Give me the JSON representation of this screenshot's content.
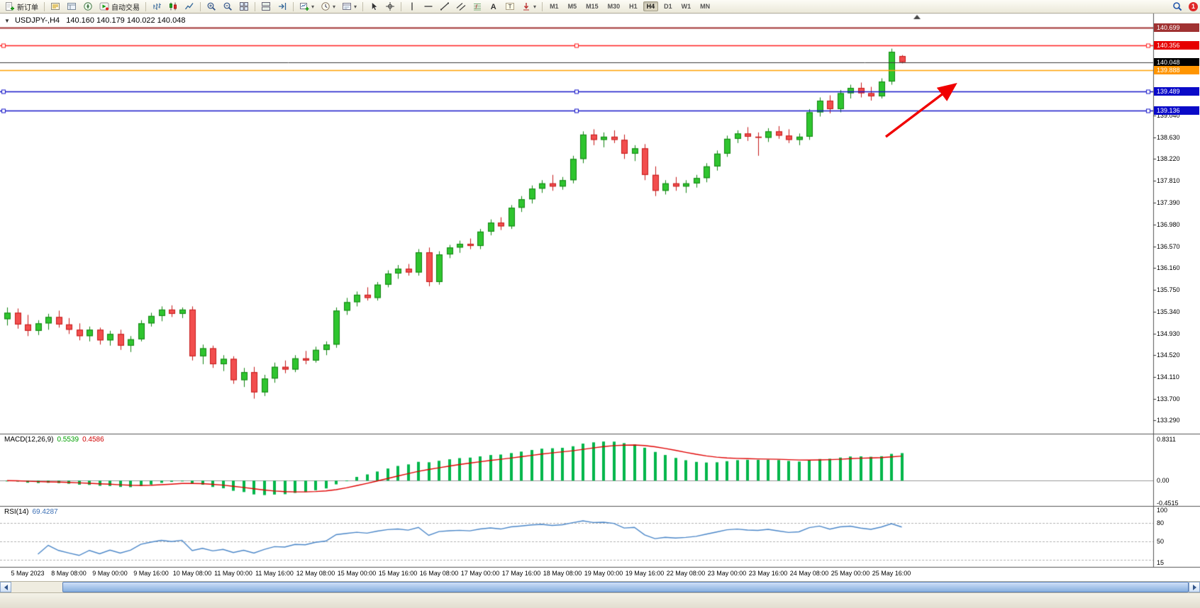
{
  "toolbar": {
    "items": [
      {
        "kind": "button",
        "name": "new-order",
        "icon": "new-order",
        "label": "新订单"
      },
      {
        "kind": "sep"
      },
      {
        "kind": "icon",
        "name": "market-watch"
      },
      {
        "kind": "icon",
        "name": "data-window"
      },
      {
        "kind": "icon",
        "name": "navigator"
      },
      {
        "kind": "button",
        "name": "auto-trading",
        "icon": "auto-trading",
        "label": "自动交易"
      },
      {
        "kind": "sep"
      },
      {
        "kind": "icon",
        "name": "bar-chart"
      },
      {
        "kind": "icon",
        "name": "candlestick-chart"
      },
      {
        "kind": "icon",
        "name": "line-chart"
      },
      {
        "kind": "sep"
      },
      {
        "kind": "icon",
        "name": "zoom-in"
      },
      {
        "kind": "icon",
        "name": "zoom-out"
      },
      {
        "kind": "icon",
        "name": "tile-windows"
      },
      {
        "kind": "sep"
      },
      {
        "kind": "icon",
        "name": "auto-arrange"
      },
      {
        "kind": "icon",
        "name": "chart-shift"
      },
      {
        "kind": "sep"
      },
      {
        "kind": "icon",
        "name": "new-chart",
        "caret": true
      },
      {
        "kind": "icon",
        "name": "periods",
        "caret": true
      },
      {
        "kind": "icon",
        "name": "templates",
        "caret": true
      },
      {
        "kind": "sep"
      },
      {
        "kind": "icon",
        "name": "cursor"
      },
      {
        "kind": "icon",
        "name": "crosshair"
      },
      {
        "kind": "sep"
      },
      {
        "kind": "icon",
        "name": "vertical-line"
      },
      {
        "kind": "icon",
        "name": "horizontal-line"
      },
      {
        "kind": "icon",
        "name": "trendline"
      },
      {
        "kind": "icon",
        "name": "equidistant-channel"
      },
      {
        "kind": "icon",
        "name": "fibonacci"
      },
      {
        "kind": "icon",
        "name": "text"
      },
      {
        "kind": "icon",
        "name": "text-label"
      },
      {
        "kind": "icon",
        "name": "arrows",
        "caret": true
      },
      {
        "kind": "sep"
      },
      {
        "kind": "timeframes"
      },
      {
        "kind": "spacer"
      },
      {
        "kind": "icon",
        "name": "search"
      },
      {
        "kind": "badge",
        "name": "notifications",
        "label": "1"
      }
    ],
    "timeframes": [
      "M1",
      "M5",
      "M15",
      "M30",
      "H1",
      "H4",
      "D1",
      "W1",
      "MN"
    ],
    "active_timeframe": "H4"
  },
  "chart": {
    "title_symbol": "USDJPY-,H4",
    "title_ohlc": "140.160 140.179 140.022 140.048",
    "symbol": "USDJPY-",
    "period": "H4",
    "current_candle": {
      "open": "140.160",
      "high": "140.179",
      "low": "140.022",
      "close": "140.048"
    }
  },
  "chart_data": {
    "type": "candlestick",
    "symbol": "USDJPY-",
    "timeframe": "H4",
    "ohlc_format": [
      "open",
      "high",
      "low",
      "close"
    ],
    "ylim": [
      133.04,
      140.95
    ],
    "price_axis_ticks": [
      "139.040",
      "138.630",
      "138.220",
      "137.810",
      "137.390",
      "136.980",
      "136.570",
      "136.160",
      "135.750",
      "135.340",
      "134.930",
      "134.520",
      "134.110",
      "133.700",
      "133.290"
    ],
    "time_labels": [
      "5 May 2023",
      "8 May 08:00",
      "9 May 00:00",
      "9 May 16:00",
      "10 May 08:00",
      "11 May 00:00",
      "11 May 16:00",
      "12 May 08:00",
      "15 May 00:00",
      "15 May 16:00",
      "16 May 08:00",
      "17 May 00:00",
      "17 May 16:00",
      "18 May 08:00",
      "19 May 00:00",
      "19 May 16:00",
      "22 May 08:00",
      "23 May 00:00",
      "23 May 16:00",
      "24 May 08:00",
      "25 May 00:00",
      "25 May 16:00"
    ],
    "label_first_candle_index": 2,
    "label_step": 4,
    "candles": [
      [
        135.2,
        135.42,
        135.08,
        135.32
      ],
      [
        135.32,
        135.4,
        135.02,
        135.1
      ],
      [
        135.1,
        135.28,
        134.88,
        134.98
      ],
      [
        134.98,
        135.18,
        134.9,
        135.12
      ],
      [
        135.12,
        135.3,
        135.0,
        135.24
      ],
      [
        135.24,
        135.36,
        135.04,
        135.1
      ],
      [
        135.1,
        135.22,
        134.92,
        135.0
      ],
      [
        135.0,
        135.12,
        134.8,
        134.88
      ],
      [
        134.88,
        135.06,
        134.78,
        135.0
      ],
      [
        135.0,
        135.04,
        134.72,
        134.8
      ],
      [
        134.8,
        134.98,
        134.7,
        134.92
      ],
      [
        134.92,
        135.0,
        134.62,
        134.7
      ],
      [
        134.7,
        134.88,
        134.58,
        134.82
      ],
      [
        134.82,
        135.18,
        134.78,
        135.12
      ],
      [
        135.12,
        135.32,
        135.06,
        135.26
      ],
      [
        135.26,
        135.44,
        135.16,
        135.38
      ],
      [
        135.38,
        135.46,
        135.24,
        135.3
      ],
      [
        135.3,
        135.42,
        135.22,
        135.38
      ],
      [
        135.38,
        135.44,
        134.42,
        134.5
      ],
      [
        134.5,
        134.72,
        134.35,
        134.65
      ],
      [
        134.65,
        134.7,
        134.28,
        134.35
      ],
      [
        134.35,
        134.52,
        134.22,
        134.45
      ],
      [
        134.45,
        134.5,
        133.98,
        134.05
      ],
      [
        134.05,
        134.28,
        133.92,
        134.2
      ],
      [
        134.2,
        134.3,
        133.7,
        133.82
      ],
      [
        133.82,
        134.15,
        133.75,
        134.08
      ],
      [
        134.08,
        134.38,
        134.0,
        134.3
      ],
      [
        134.3,
        134.42,
        134.18,
        134.25
      ],
      [
        134.25,
        134.52,
        134.2,
        134.46
      ],
      [
        134.46,
        134.6,
        134.35,
        134.42
      ],
      [
        134.42,
        134.68,
        134.38,
        134.62
      ],
      [
        134.62,
        134.78,
        134.52,
        134.72
      ],
      [
        134.72,
        135.42,
        134.66,
        135.36
      ],
      [
        135.36,
        135.6,
        135.28,
        135.52
      ],
      [
        135.52,
        135.72,
        135.44,
        135.66
      ],
      [
        135.66,
        135.8,
        135.55,
        135.6
      ],
      [
        135.6,
        135.9,
        135.55,
        135.85
      ],
      [
        135.85,
        136.12,
        135.8,
        136.06
      ],
      [
        136.06,
        136.22,
        135.96,
        136.15
      ],
      [
        136.15,
        136.24,
        136.02,
        136.08
      ],
      [
        136.08,
        136.52,
        136.02,
        136.46
      ],
      [
        136.46,
        136.55,
        135.82,
        135.9
      ],
      [
        135.9,
        136.48,
        135.85,
        136.42
      ],
      [
        136.42,
        136.6,
        136.35,
        136.55
      ],
      [
        136.55,
        136.68,
        136.45,
        136.62
      ],
      [
        136.62,
        136.72,
        136.52,
        136.58
      ],
      [
        136.58,
        136.9,
        136.52,
        136.85
      ],
      [
        136.85,
        137.08,
        136.78,
        137.02
      ],
      [
        137.02,
        137.12,
        136.88,
        136.95
      ],
      [
        136.95,
        137.35,
        136.9,
        137.3
      ],
      [
        137.3,
        137.52,
        137.22,
        137.46
      ],
      [
        137.46,
        137.72,
        137.38,
        137.66
      ],
      [
        137.66,
        137.82,
        137.58,
        137.76
      ],
      [
        137.76,
        137.92,
        137.62,
        137.7
      ],
      [
        137.7,
        137.88,
        137.64,
        137.82
      ],
      [
        137.82,
        138.28,
        137.76,
        138.22
      ],
      [
        138.22,
        138.74,
        138.14,
        138.68
      ],
      [
        138.68,
        138.78,
        138.48,
        138.58
      ],
      [
        138.58,
        138.72,
        138.44,
        138.64
      ],
      [
        138.64,
        138.76,
        138.52,
        138.58
      ],
      [
        138.58,
        138.68,
        138.22,
        138.32
      ],
      [
        138.32,
        138.48,
        138.18,
        138.42
      ],
      [
        138.42,
        138.5,
        137.82,
        137.92
      ],
      [
        137.92,
        138.08,
        137.52,
        137.62
      ],
      [
        137.62,
        137.82,
        137.55,
        137.76
      ],
      [
        137.76,
        137.88,
        137.62,
        137.7
      ],
      [
        137.7,
        137.82,
        137.58,
        137.76
      ],
      [
        137.76,
        137.92,
        137.68,
        137.86
      ],
      [
        137.86,
        138.14,
        137.78,
        138.08
      ],
      [
        138.08,
        138.38,
        138.0,
        138.32
      ],
      [
        138.32,
        138.66,
        138.26,
        138.6
      ],
      [
        138.6,
        138.76,
        138.52,
        138.7
      ],
      [
        138.7,
        138.82,
        138.56,
        138.64
      ],
      [
        138.64,
        138.72,
        138.28,
        138.62
      ],
      [
        138.62,
        138.8,
        138.54,
        138.74
      ],
      [
        138.74,
        138.84,
        138.6,
        138.66
      ],
      [
        138.66,
        138.78,
        138.52,
        138.58
      ],
      [
        138.58,
        138.7,
        138.48,
        138.64
      ],
      [
        138.64,
        139.16,
        138.58,
        139.1
      ],
      [
        139.1,
        139.38,
        139.02,
        139.32
      ],
      [
        139.32,
        139.42,
        139.08,
        139.16
      ],
      [
        139.16,
        139.52,
        139.1,
        139.46
      ],
      [
        139.46,
        139.62,
        139.36,
        139.56
      ],
      [
        139.56,
        139.66,
        139.38,
        139.46
      ],
      [
        139.46,
        139.58,
        139.32,
        139.4
      ],
      [
        139.4,
        139.74,
        139.36,
        139.68
      ],
      [
        139.68,
        140.3,
        139.62,
        140.24
      ],
      [
        140.16,
        140.179,
        140.022,
        140.048
      ]
    ],
    "hlines": [
      {
        "name": "resistance-upper",
        "price": 140.699,
        "label": "140.699",
        "color": "#A03232",
        "bg": "#A03232",
        "width": 2,
        "interactable": true
      },
      {
        "name": "resistance-mid",
        "price": 140.356,
        "label": "140.356",
        "color": "#FF1E1E",
        "bg": "#E60000",
        "width": 1.5,
        "handles": true,
        "interactable": true
      },
      {
        "name": "current-price",
        "price": 140.048,
        "label": "140.048",
        "color": "#3A3A3A",
        "bg": "#000000",
        "width": 1,
        "interactable": false
      },
      {
        "name": "pivot-orange",
        "price": 139.888,
        "label": "139.888",
        "color": "#FFA000",
        "bg": "#FF9500",
        "width": 1.5,
        "interactable": true
      },
      {
        "name": "support-upper",
        "price": 139.489,
        "label": "139.489",
        "color": "#1414C8",
        "bg": "#0A0AC8",
        "width": 1.5,
        "handles": true,
        "interactable": true
      },
      {
        "name": "support-lower",
        "price": 139.136,
        "label": "139.136",
        "color": "#1414C8",
        "bg": "#0A0AC8",
        "width": 1.5,
        "handles": true,
        "interactable": true
      }
    ],
    "indicators": [
      {
        "type": "MACD",
        "params": [
          12,
          26,
          9
        ],
        "display": "MACD(12,26,9)",
        "value_main": "0.5539",
        "value_signal": "0.4586",
        "axis_ticks": [
          "0.8311",
          "0.00",
          "-0.4515"
        ],
        "ylim": [
          -0.4515,
          0.8311
        ]
      },
      {
        "type": "RSI",
        "params": [
          14
        ],
        "display": "RSI(14)",
        "value": "69.4287",
        "axis_ticks": [
          "100",
          "80",
          "50",
          "15"
        ],
        "levels": [
          80,
          50,
          20
        ],
        "ylim": [
          12,
          103
        ]
      }
    ],
    "annotations": [
      {
        "type": "arrow",
        "from": [
          1249,
          193
        ],
        "to": [
          1347,
          119
        ],
        "color": "#F00000",
        "width": 3.4
      }
    ]
  },
  "colors": {
    "candle_up_fill": "#2FC52F",
    "candle_up_stroke": "#128312",
    "candle_down_fill": "#F24E4E",
    "candle_down_stroke": "#C41A1A",
    "macd_histogram": "#00B64A",
    "macd_signal": "#E00000",
    "rsi_line": "#4A86C8",
    "arrow": "#F00000",
    "background": "#FFFFFF",
    "axis_text": "#000000"
  }
}
